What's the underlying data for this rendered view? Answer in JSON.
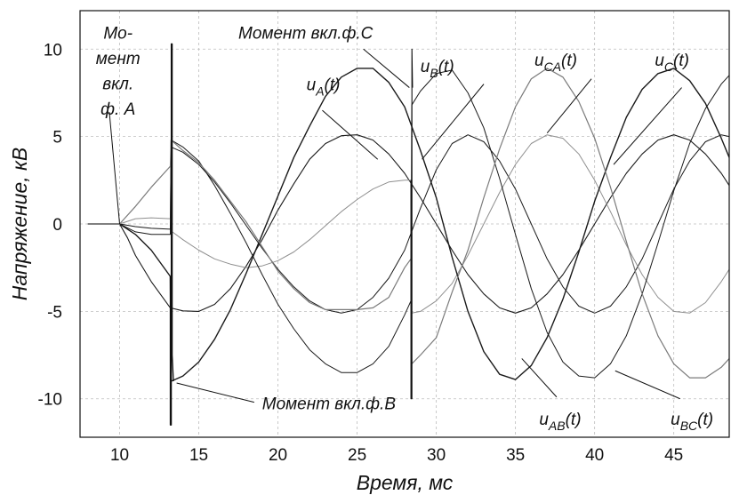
{
  "chart_data": {
    "type": "line",
    "title": "",
    "xlabel": "Время, мс",
    "ylabel": "Напряжение, кВ",
    "xlim": [
      7.5,
      48.5
    ],
    "ylim": [
      -12.2,
      12.2
    ],
    "x_ticks": [
      10,
      15,
      20,
      25,
      30,
      35,
      40,
      45
    ],
    "y_ticks": [
      10,
      5,
      0,
      -5,
      -10
    ],
    "grid": true,
    "legend": "none",
    "series": [
      {
        "id": "uA",
        "color": "#1a1a1a",
        "width": 1.1,
        "x": [
          8,
          10,
          10.5,
          11,
          12,
          13.2,
          14,
          15,
          16,
          17,
          18,
          19,
          20,
          21,
          22,
          23,
          24,
          25,
          26,
          27,
          28,
          29,
          30,
          31,
          32,
          33,
          34,
          35,
          36,
          37,
          38,
          39,
          40,
          41,
          42,
          43,
          44,
          45,
          46,
          47,
          48,
          48.5
        ],
        "y": [
          0,
          0,
          -0.8,
          -1.8,
          -3.3,
          -4.8,
          -4.97,
          -5.0,
          -4.6,
          -3.7,
          -2.4,
          -0.9,
          0.8,
          2.3,
          3.7,
          4.6,
          5.05,
          5.1,
          4.8,
          4.0,
          2.9,
          1.5,
          0.0,
          -1.5,
          -2.9,
          -4.0,
          -4.8,
          -5.1,
          -4.8,
          -4.0,
          -2.9,
          -1.5,
          0.0,
          1.5,
          2.9,
          4.0,
          4.8,
          5.1,
          4.8,
          4.0,
          2.9,
          2.2
        ]
      },
      {
        "id": "uB",
        "color": "#1a1a1a",
        "width": 1.0,
        "x": [
          8,
          10,
          11,
          12,
          13.2,
          13.25,
          14,
          15,
          16,
          17,
          18,
          19,
          20,
          21,
          22,
          23,
          24,
          25,
          26,
          27,
          28,
          29,
          30,
          31,
          32,
          33,
          34,
          35,
          36,
          37,
          38,
          39,
          40,
          41,
          42,
          43,
          44,
          45,
          46,
          47,
          48,
          48.5
        ],
        "y": [
          0,
          0,
          -0.15,
          -0.25,
          -0.3,
          4.4,
          4.1,
          3.4,
          2.4,
          1.2,
          -0.1,
          -1.4,
          -2.6,
          -3.6,
          -4.4,
          -4.9,
          -5.1,
          -4.9,
          -4.2,
          -3.1,
          -1.5,
          0.9,
          3.1,
          4.6,
          5.1,
          4.7,
          3.6,
          2.0,
          0.0,
          -2.0,
          -3.6,
          -4.7,
          -5.1,
          -4.7,
          -3.6,
          -2.0,
          0.0,
          2.0,
          3.6,
          4.7,
          5.1,
          5.0
        ]
      },
      {
        "id": "uC",
        "color": "#8f8f8f",
        "width": 1.0,
        "x": [
          8,
          10,
          11,
          12,
          13.2,
          13.25,
          14,
          15,
          16,
          17,
          18,
          19,
          20,
          21,
          22,
          23,
          24,
          25,
          26,
          27,
          28,
          28.4,
          28.45,
          29,
          30,
          31,
          32,
          33,
          34,
          35,
          36,
          37,
          38,
          39,
          40,
          41,
          42,
          43,
          44,
          45,
          46,
          47,
          48,
          48.5
        ],
        "y": [
          0,
          0,
          0.3,
          0.35,
          0.3,
          -0.4,
          -0.9,
          -1.5,
          -2.0,
          -2.3,
          -2.5,
          -2.4,
          -2.1,
          -1.6,
          -0.9,
          -0.1,
          0.7,
          1.4,
          2.0,
          2.4,
          2.5,
          2.5,
          -5.1,
          -5.0,
          -4.4,
          -3.4,
          -1.8,
          0.0,
          1.8,
          3.4,
          4.6,
          5.1,
          4.9,
          4.0,
          2.5,
          0.7,
          -1.2,
          -2.9,
          -4.2,
          -5.0,
          -5.1,
          -4.5,
          -3.3,
          -2.6
        ]
      },
      {
        "id": "uAB",
        "color": "#1a1a1a",
        "width": 1.4,
        "x": [
          8,
          10,
          11,
          12,
          13.2,
          13.25,
          14,
          15,
          16,
          17,
          18,
          19,
          20,
          21,
          22,
          23,
          24,
          25,
          26,
          27,
          28,
          29,
          30,
          31,
          32,
          33,
          34,
          35,
          36,
          37,
          38,
          39,
          40,
          41,
          42,
          43,
          44,
          45,
          46,
          47,
          48,
          48.5
        ],
        "y": [
          0,
          0,
          -0.6,
          -1.5,
          -3.0,
          -9.0,
          -8.7,
          -7.9,
          -6.6,
          -4.9,
          -2.8,
          -0.6,
          1.6,
          3.8,
          5.6,
          7.3,
          8.4,
          8.9,
          8.9,
          8.1,
          6.7,
          4.2,
          1.5,
          -1.9,
          -5.0,
          -7.3,
          -8.6,
          -8.9,
          -8.1,
          -6.5,
          -4.3,
          -1.6,
          1.3,
          3.8,
          6.1,
          7.7,
          8.6,
          8.9,
          8.2,
          6.9,
          4.9,
          3.8
        ]
      },
      {
        "id": "uBC",
        "color": "#1a1a1a",
        "width": 1.0,
        "x": [
          8,
          10,
          11,
          12,
          13.2,
          13.25,
          14,
          15,
          16,
          17,
          18,
          19,
          20,
          21,
          22,
          23,
          24,
          25,
          26,
          27,
          28,
          28.4,
          28.45,
          29,
          30,
          31,
          32,
          33,
          34,
          35,
          36,
          37,
          38,
          39,
          40,
          41,
          42,
          43,
          44,
          45,
          46,
          47,
          48,
          48.5
        ],
        "y": [
          0,
          0,
          -0.45,
          -0.6,
          -0.6,
          4.8,
          4.4,
          3.6,
          2.2,
          0.6,
          -1.1,
          -2.9,
          -4.6,
          -6.0,
          -7.2,
          -8.0,
          -8.5,
          -8.5,
          -8.0,
          -7.0,
          -5.2,
          -4.4,
          6.8,
          7.6,
          8.6,
          8.8,
          7.5,
          5.5,
          2.6,
          -0.6,
          -3.7,
          -6.2,
          -7.9,
          -8.7,
          -8.8,
          -8.0,
          -6.4,
          -4.0,
          -1.1,
          1.9,
          4.6,
          6.6,
          8.0,
          8.5
        ]
      },
      {
        "id": "uCA",
        "color": "#7a7a7a",
        "width": 1.2,
        "x": [
          8,
          10,
          11,
          12,
          13.2,
          13.25,
          14,
          15,
          16,
          17,
          18,
          19,
          20,
          21,
          22,
          23,
          24,
          25,
          26,
          27,
          28,
          28.4,
          28.45,
          29,
          30,
          31,
          32,
          33,
          34,
          35,
          36,
          37,
          38,
          39,
          40,
          41,
          42,
          43,
          44,
          45,
          46,
          47,
          48,
          48.5
        ],
        "y": [
          0,
          0,
          1.0,
          2.1,
          3.3,
          4.8,
          4.2,
          3.5,
          2.5,
          1.3,
          0.1,
          -1.3,
          -2.7,
          -3.7,
          -4.5,
          -4.9,
          -4.9,
          -4.9,
          -4.8,
          -4.2,
          -2.5,
          -2.0,
          -8.0,
          -7.5,
          -6.5,
          -3.9,
          -1.5,
          1.5,
          4.3,
          6.7,
          8.3,
          8.9,
          8.4,
          7.0,
          4.9,
          2.1,
          -1.0,
          -4.0,
          -6.4,
          -8.0,
          -8.8,
          -8.8,
          -8.2,
          -7.7
        ]
      },
      {
        "id": "spikeB",
        "color": "#111111",
        "width": 1.3,
        "x": [
          13.2,
          13.2,
          13.26,
          13.26,
          13.32,
          13.32,
          13.4
        ],
        "y": [
          -3.0,
          -11.5,
          -11.5,
          10.3,
          10.3,
          -7.5,
          -9.0
        ]
      },
      {
        "id": "spikeC",
        "color": "#111111",
        "width": 1.1,
        "x": [
          28.4,
          28.4,
          28.46,
          28.46,
          28.5
        ],
        "y": [
          2.5,
          -10.0,
          -10.0,
          10.0,
          7.8
        ]
      }
    ],
    "annotations": [
      {
        "lines": [
          "Мо-",
          "мент",
          "вкл.",
          "ф. A"
        ],
        "pos": [
          9.9,
          10.6
        ],
        "line_step": 1.45,
        "anchor": "middle",
        "pointer": [
          [
            9.35,
            6.4
          ],
          [
            10.0,
            0.0
          ]
        ]
      },
      {
        "lines": [
          "Момент вкл.ф.С"
        ],
        "pos": [
          17.5,
          10.6
        ],
        "anchor": "start",
        "pointer": [
          [
            25.4,
            10.0
          ],
          [
            28.3,
            7.8
          ]
        ]
      },
      {
        "lines": [
          "Момент вкл.ф.В"
        ],
        "pos": [
          19.0,
          -10.6
        ],
        "anchor": "start",
        "pointer": [
          [
            18.5,
            -10.2
          ],
          [
            13.6,
            -9.1
          ]
        ]
      }
    ],
    "curve_labels": [
      {
        "base": "u",
        "sub": "A",
        "suffix": "(t)",
        "pos": [
          21.8,
          7.65
        ],
        "pointer": [
          [
            22.8,
            6.5
          ],
          [
            26.3,
            3.7
          ]
        ]
      },
      {
        "base": "u",
        "sub": "B",
        "suffix": "(t)",
        "pos": [
          29.0,
          8.7
        ],
        "pointer": [
          [
            33.0,
            8.0
          ],
          [
            29.1,
            3.7
          ]
        ]
      },
      {
        "base": "u",
        "sub": "CA",
        "suffix": "(t)",
        "pos": [
          36.2,
          9.05
        ],
        "pointer": [
          [
            39.8,
            8.3
          ],
          [
            37.0,
            5.2
          ]
        ]
      },
      {
        "base": "u",
        "sub": "C",
        "suffix": "(t)",
        "pos": [
          43.8,
          9.05
        ],
        "pointer": [
          [
            45.5,
            7.8
          ],
          [
            41.2,
            3.4
          ]
        ]
      },
      {
        "base": "u",
        "sub": "AB",
        "suffix": "(t)",
        "pos": [
          36.5,
          -11.5
        ],
        "pointer": [
          [
            37.6,
            -9.9
          ],
          [
            35.4,
            -7.7
          ]
        ]
      },
      {
        "base": "u",
        "sub": "BC",
        "suffix": "(t)",
        "pos": [
          44.8,
          -11.5
        ],
        "pointer": [
          [
            45.4,
            -10.0
          ],
          [
            41.3,
            -8.4
          ]
        ]
      }
    ]
  }
}
